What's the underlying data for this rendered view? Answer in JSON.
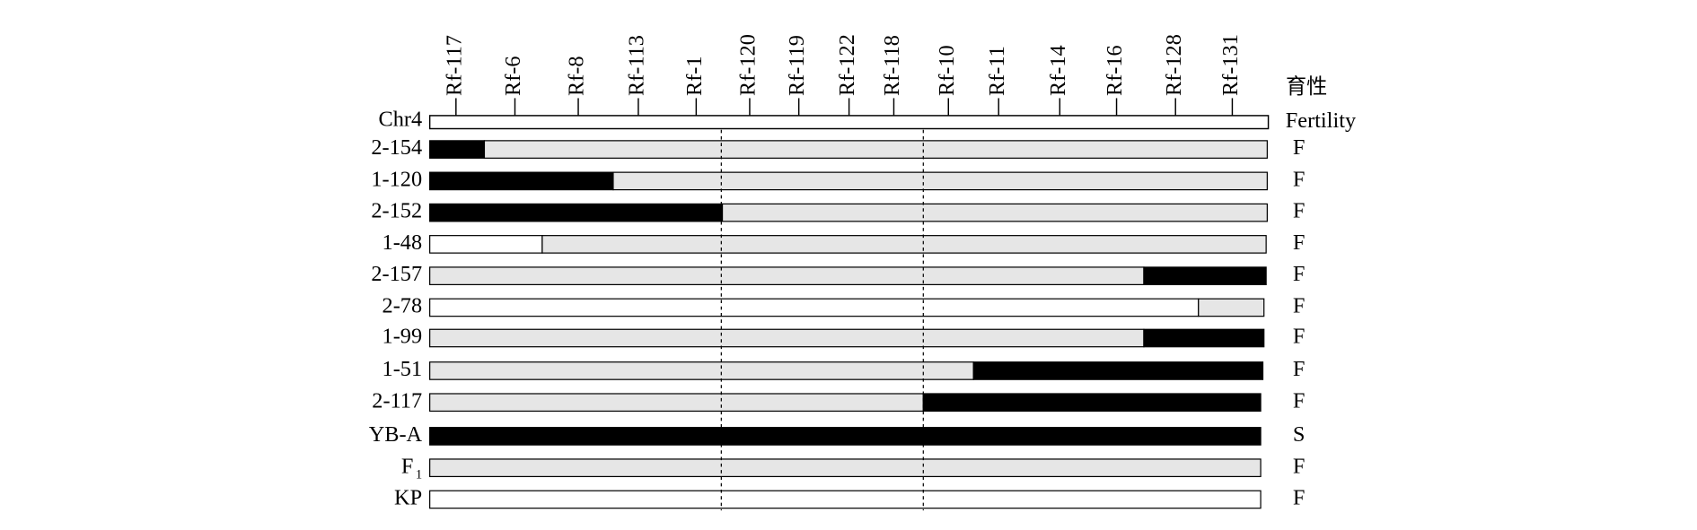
{
  "chromosome": "Chr4",
  "fertility_header": {
    "zh": "育性",
    "en": "Fertility"
  },
  "markers": [
    "Rf-117",
    "Rf-6",
    "Rf-8",
    "Rf-113",
    "Rf-1",
    "Rf-120",
    "Rf-119",
    "Rf-122",
    "Rf-118",
    "Rf-10",
    "Rf-11",
    "Rf-14",
    "Rf-16",
    "Rf-128",
    "Rf-131"
  ],
  "rows": [
    {
      "label": "2-154",
      "fertility": "F"
    },
    {
      "label": "1-120",
      "fertility": "F"
    },
    {
      "label": "2-152",
      "fertility": "F"
    },
    {
      "label": "1-48",
      "fertility": "F"
    },
    {
      "label": "2-157",
      "fertility": "F"
    },
    {
      "label": "2-78",
      "fertility": "F"
    },
    {
      "label": "1-99",
      "fertility": "F"
    },
    {
      "label": "1-51",
      "fertility": "F"
    },
    {
      "label": "2-117",
      "fertility": "F"
    },
    {
      "label": "YB-A",
      "fertility": "S"
    },
    {
      "label": "F",
      "label_sub": "1",
      "fertility": "F"
    },
    {
      "label": "KP",
      "fertility": "F"
    }
  ]
}
